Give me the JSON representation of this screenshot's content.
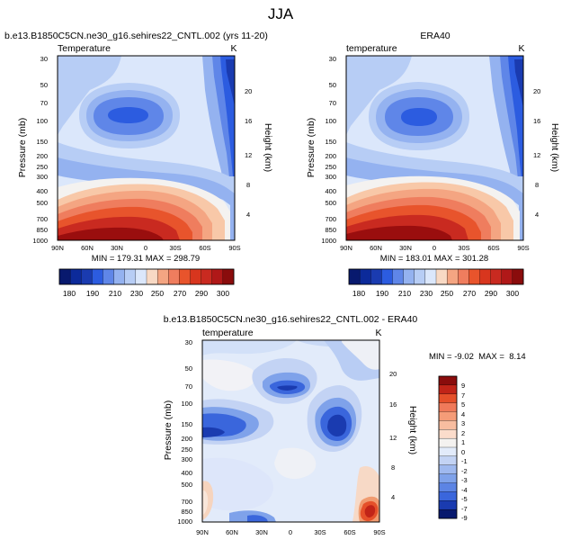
{
  "page_title": "JJA",
  "colors": {
    "cold_dark": "#08196e",
    "cold_mid": "#2c5ce0",
    "cold_light": "#b7cdf5",
    "neutral": "#f4f2f0",
    "warm_light": "#f8c8a8",
    "warm_mid": "#e8542c",
    "warm_dark": "#9a0e0e"
  },
  "chart_data": [
    {
      "type": "heatmap",
      "panel_title": "b.e13.B1850C5CN.ne30_g16.sehires22_CNTL.002 (yrs 11-20)",
      "left_label": "Temperature",
      "units": "K",
      "ylabel": "Pressure (mb)",
      "y2label": "Height (km)",
      "x_tick_labels": [
        "90N",
        "60N",
        "30N",
        "0",
        "30S",
        "60S",
        "90S"
      ],
      "y_tick_labels": [
        "30",
        "50",
        "70",
        "100",
        "150",
        "200",
        "250",
        "300",
        "400",
        "500",
        "700",
        "850",
        "1000"
      ],
      "y2_tick_labels": [
        "20",
        "16",
        "12",
        "8",
        "4"
      ],
      "stats_text": "MIN = 179.31  MAX = 298.79",
      "colorbar": {
        "orientation": "horizontal",
        "tick_labels": [
          "180",
          "190",
          "210",
          "230",
          "250",
          "270",
          "290",
          "300"
        ]
      }
    },
    {
      "type": "heatmap",
      "panel_title": "ERA40",
      "left_label": "temperature",
      "units": "K",
      "ylabel": "Pressure (mb)",
      "y2label": "Height (km)",
      "x_tick_labels": [
        "90N",
        "60N",
        "30N",
        "0",
        "30S",
        "60S",
        "90S"
      ],
      "y_tick_labels": [
        "30",
        "50",
        "70",
        "100",
        "150",
        "200",
        "250",
        "300",
        "400",
        "500",
        "700",
        "850",
        "1000"
      ],
      "y2_tick_labels": [
        "20",
        "16",
        "12",
        "8",
        "4"
      ],
      "stats_text": "MIN = 183.01  MAX = 301.28",
      "colorbar": {
        "orientation": "horizontal",
        "tick_labels": [
          "180",
          "190",
          "210",
          "230",
          "250",
          "270",
          "290",
          "300"
        ]
      }
    },
    {
      "type": "heatmap",
      "panel_title": "b.e13.B1850C5CN.ne30_g16.sehires22_CNTL.002 - ERA40",
      "left_label": "temperature",
      "units": "K",
      "ylabel": "Pressure (mb)",
      "y2label": "Height (km)",
      "x_tick_labels": [
        "90N",
        "60N",
        "30N",
        "0",
        "30S",
        "60S",
        "90S"
      ],
      "y_tick_labels": [
        "30",
        "50",
        "70",
        "100",
        "150",
        "200",
        "250",
        "300",
        "400",
        "500",
        "700",
        "850",
        "1000"
      ],
      "y2_tick_labels": [
        "20",
        "16",
        "12",
        "8",
        "4"
      ],
      "stats_text": "MIN = -9.02  MAX =  8.14",
      "colorbar": {
        "orientation": "vertical",
        "tick_labels": [
          "9",
          "7",
          "5",
          "4",
          "3",
          "2",
          "1",
          "0",
          "-1",
          "-2",
          "-3",
          "-4",
          "-5",
          "-7",
          "-9"
        ]
      }
    }
  ]
}
